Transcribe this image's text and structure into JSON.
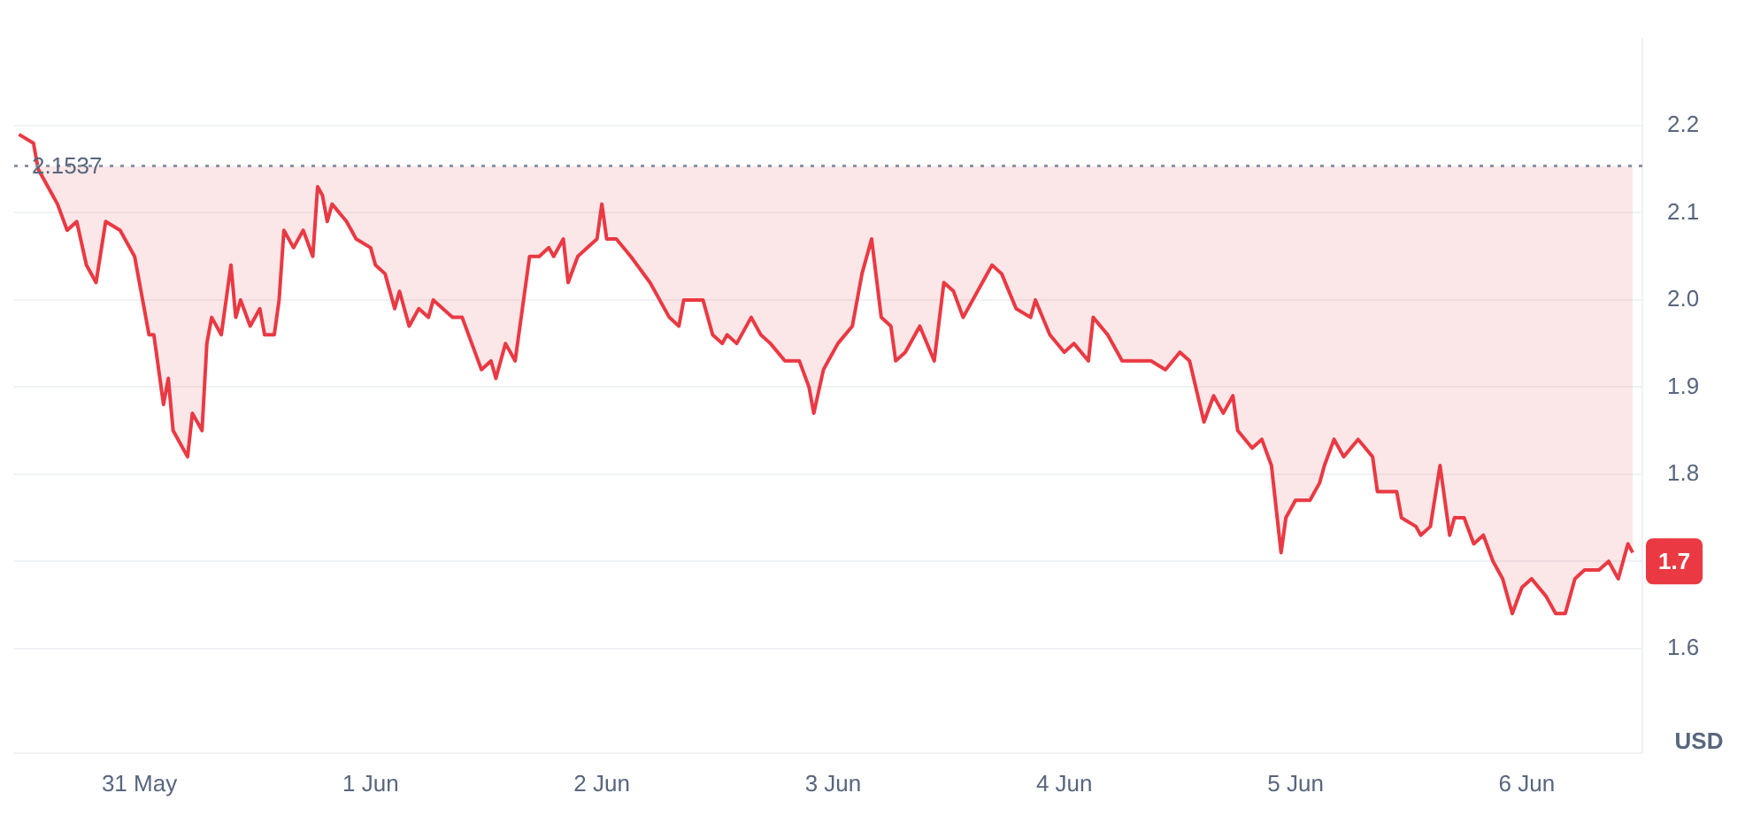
{
  "chart_data": {
    "type": "line",
    "ylabel": "USD",
    "x": [
      "--05-30T11:30",
      "--05-30T13:00",
      "--05-30T13:30",
      "--05-30T15:00",
      "--05-30T15:30",
      "--05-30T16:30",
      "--05-30T17:30",
      "--05-30T18:30",
      "--05-30T19:30",
      "--05-30T20:30",
      "--05-30T22:00",
      "--05-30T23:30",
      "--05-31T01:00",
      "--05-31T01:30",
      "--05-31T02:30",
      "--05-31T03:00",
      "--05-31T03:30",
      "--05-31T05:00",
      "--05-31T05:30",
      "--05-31T06:30",
      "--05-31T07:00",
      "--05-31T07:30",
      "--05-31T08:30",
      "--05-31T09:30",
      "--05-31T10:00",
      "--05-31T10:30",
      "--05-31T11:30",
      "--05-31T12:30",
      "--05-31T13:00",
      "--05-31T14:00",
      "--05-31T14:30",
      "--05-31T15:00",
      "--05-31T16:00",
      "--05-31T17:00",
      "--05-31T18:00",
      "--05-31T18:30",
      "--05-31T19:00",
      "--05-31T19:30",
      "--05-31T20:00",
      "--05-31T21:30",
      "--05-31T22:30",
      "--06-01T00:00",
      "--06-01T00:30",
      "--06-01T01:30",
      "--06-01T02:30",
      "--06-01T03:00",
      "--06-01T04:00",
      "--06-01T05:00",
      "--06-01T06:00",
      "--06-01T06:30",
      "--06-01T07:30",
      "--06-01T08:30",
      "--06-01T09:30",
      "--06-01T10:30",
      "--06-01T11:30",
      "--06-01T12:30",
      "--06-01T13:00",
      "--06-01T14:00",
      "--06-01T15:00",
      "--06-01T15:30",
      "--06-01T16:30",
      "--06-01T17:30",
      "--06-01T18:30",
      "--06-01T19:00",
      "--06-01T20:00",
      "--06-01T20:30",
      "--06-01T21:30",
      "--06-01T22:30",
      "--06-01T23:30",
      "--06-02T00:00",
      "--06-02T00:30",
      "--06-02T01:30",
      "--06-02T03:00",
      "--06-02T05:00",
      "--06-02T05:30",
      "--06-02T07:00",
      "--06-02T08:00",
      "--06-02T08:30",
      "--06-02T09:30",
      "--06-02T10:30",
      "--06-02T11:30",
      "--06-02T12:30",
      "--06-02T13:00",
      "--06-02T14:00",
      "--06-02T15:30",
      "--06-02T16:30",
      "--06-02T17:30",
      "--06-02T19:00",
      "--06-02T20:30",
      "--06-02T21:30",
      "--06-02T22:00",
      "--06-02T23:00",
      "--06-02T23:30",
      "--06-03T00:30",
      "--06-03T02:00",
      "--06-03T03:00",
      "--06-03T04:00",
      "--06-03T05:00",
      "--06-03T06:00",
      "--06-03T06:30",
      "--06-03T07:30",
      "--06-03T09:00",
      "--06-03T10:30",
      "--06-03T11:30",
      "--06-03T12:30",
      "--06-03T13:30",
      "--06-03T15:00",
      "--06-03T16:30",
      "--06-03T17:30",
      "--06-03T19:00",
      "--06-03T20:30",
      "--06-03T21:00",
      "--06-03T22:30",
      "--06-04T00:00",
      "--06-04T01:00",
      "--06-04T02:30",
      "--06-04T03:00",
      "--06-04T04:30",
      "--06-04T06:00",
      "--06-04T08:00",
      "--06-04T09:00",
      "--06-04T10:30",
      "--06-04T12:00",
      "--06-04T13:00",
      "--06-04T14:30",
      "--06-04T15:30",
      "--06-04T16:30",
      "--06-04T17:30",
      "--06-04T18:00",
      "--06-04T19:30",
      "--06-04T20:30",
      "--06-04T21:30",
      "--06-04T22:00",
      "--06-04T22:30",
      "--06-04T23:00",
      "--06-05T00:00",
      "--06-05T01:30",
      "--06-05T02:30",
      "--06-05T03:00",
      "--06-05T04:00",
      "--06-05T05:00",
      "--06-05T06:30",
      "--06-05T08:00",
      "--06-05T08:30",
      "--06-05T10:30",
      "--06-05T11:00",
      "--06-05T12:30",
      "--06-05T13:00",
      "--06-05T14:00",
      "--06-05T15:00",
      "--06-05T16:00",
      "--06-05T16:30",
      "--06-05T17:30",
      "--06-05T18:30",
      "--06-05T19:30",
      "--06-05T20:30",
      "--06-05T21:30",
      "--06-05T22:30",
      "--06-05T23:30",
      "--06-06T00:30",
      "--06-06T02:00",
      "--06-06T03:00",
      "--06-06T04:00",
      "--06-06T05:00",
      "--06-06T06:00",
      "--06-06T07:30",
      "--06-06T08:30",
      "--06-06T09:30",
      "--06-06T10:30",
      "--06-06T11:00"
    ],
    "series": [
      {
        "color": "#ea3943",
        "values": [
          2.19,
          2.18,
          2.15,
          2.12,
          2.11,
          2.08,
          2.09,
          2.04,
          2.02,
          2.09,
          2.08,
          2.05,
          1.96,
          1.96,
          1.88,
          1.91,
          1.85,
          1.82,
          1.87,
          1.85,
          1.95,
          1.98,
          1.96,
          2.04,
          1.98,
          2.0,
          1.97,
          1.99,
          1.96,
          1.96,
          2.0,
          2.08,
          2.06,
          2.08,
          2.05,
          2.13,
          2.12,
          2.09,
          2.11,
          2.09,
          2.07,
          2.06,
          2.04,
          2.03,
          1.99,
          2.01,
          1.97,
          1.99,
          1.98,
          2.0,
          1.99,
          1.98,
          1.98,
          1.95,
          1.92,
          1.93,
          1.91,
          1.95,
          1.93,
          1.97,
          2.05,
          2.05,
          2.06,
          2.05,
          2.07,
          2.02,
          2.05,
          2.06,
          2.07,
          2.11,
          2.07,
          2.07,
          2.05,
          2.02,
          2.01,
          1.98,
          1.97,
          2.0,
          2.0,
          2.0,
          1.96,
          1.95,
          1.96,
          1.95,
          1.98,
          1.96,
          1.95,
          1.93,
          1.93,
          1.9,
          1.87,
          1.92,
          1.93,
          1.95,
          1.97,
          2.03,
          2.07,
          1.98,
          1.97,
          1.93,
          1.94,
          1.97,
          1.93,
          2.02,
          2.01,
          1.98,
          2.01,
          2.04,
          2.03,
          1.99,
          1.98,
          2.0,
          1.96,
          1.94,
          1.95,
          1.93,
          1.98,
          1.96,
          1.93,
          1.93,
          1.93,
          1.92,
          1.94,
          1.93,
          1.86,
          1.89,
          1.87,
          1.89,
          1.85,
          1.83,
          1.84,
          1.81,
          1.76,
          1.71,
          1.75,
          1.77,
          1.77,
          1.79,
          1.81,
          1.84,
          1.82,
          1.84,
          1.82,
          1.78,
          1.78,
          1.75,
          1.74,
          1.73,
          1.74,
          1.81,
          1.73,
          1.75,
          1.75,
          1.72,
          1.73,
          1.7,
          1.68,
          1.64,
          1.67,
          1.68,
          1.66,
          1.64,
          1.64,
          1.68,
          1.69,
          1.69,
          1.7,
          1.68,
          1.72,
          1.71
        ]
      }
    ],
    "xlim": [
      "--05-30T11:00",
      "--06-06T12:00"
    ],
    "xticks": [
      {
        "value": "--05-31",
        "label": "31 May"
      },
      {
        "value": "--06-01",
        "label": "1 Jun"
      },
      {
        "value": "--06-02",
        "label": "2 Jun"
      },
      {
        "value": "--06-03",
        "label": "3 Jun"
      },
      {
        "value": "--06-04",
        "label": "4 Jun"
      },
      {
        "value": "--06-05",
        "label": "5 Jun"
      },
      {
        "value": "--06-06",
        "label": "6 Jun"
      }
    ],
    "ylim": [
      1.48,
      2.3
    ],
    "yticks": [
      1.6,
      {
        "value": 1.7,
        "label": null
      },
      1.8,
      1.9,
      {
        "value": 2,
        "label": "2.0"
      },
      2.1,
      2.2
    ],
    "ref_lines": [
      {
        "axis": "y",
        "value": 2.1537,
        "label": "2.1537",
        "color": "#8a93a6",
        "line_style": "dotted"
      }
    ],
    "annotations": [
      {
        "text": "1.7",
        "y": 1.7
      }
    ],
    "grid": "y",
    "legend": false,
    "marker": "none",
    "line_style": "solid"
  }
}
